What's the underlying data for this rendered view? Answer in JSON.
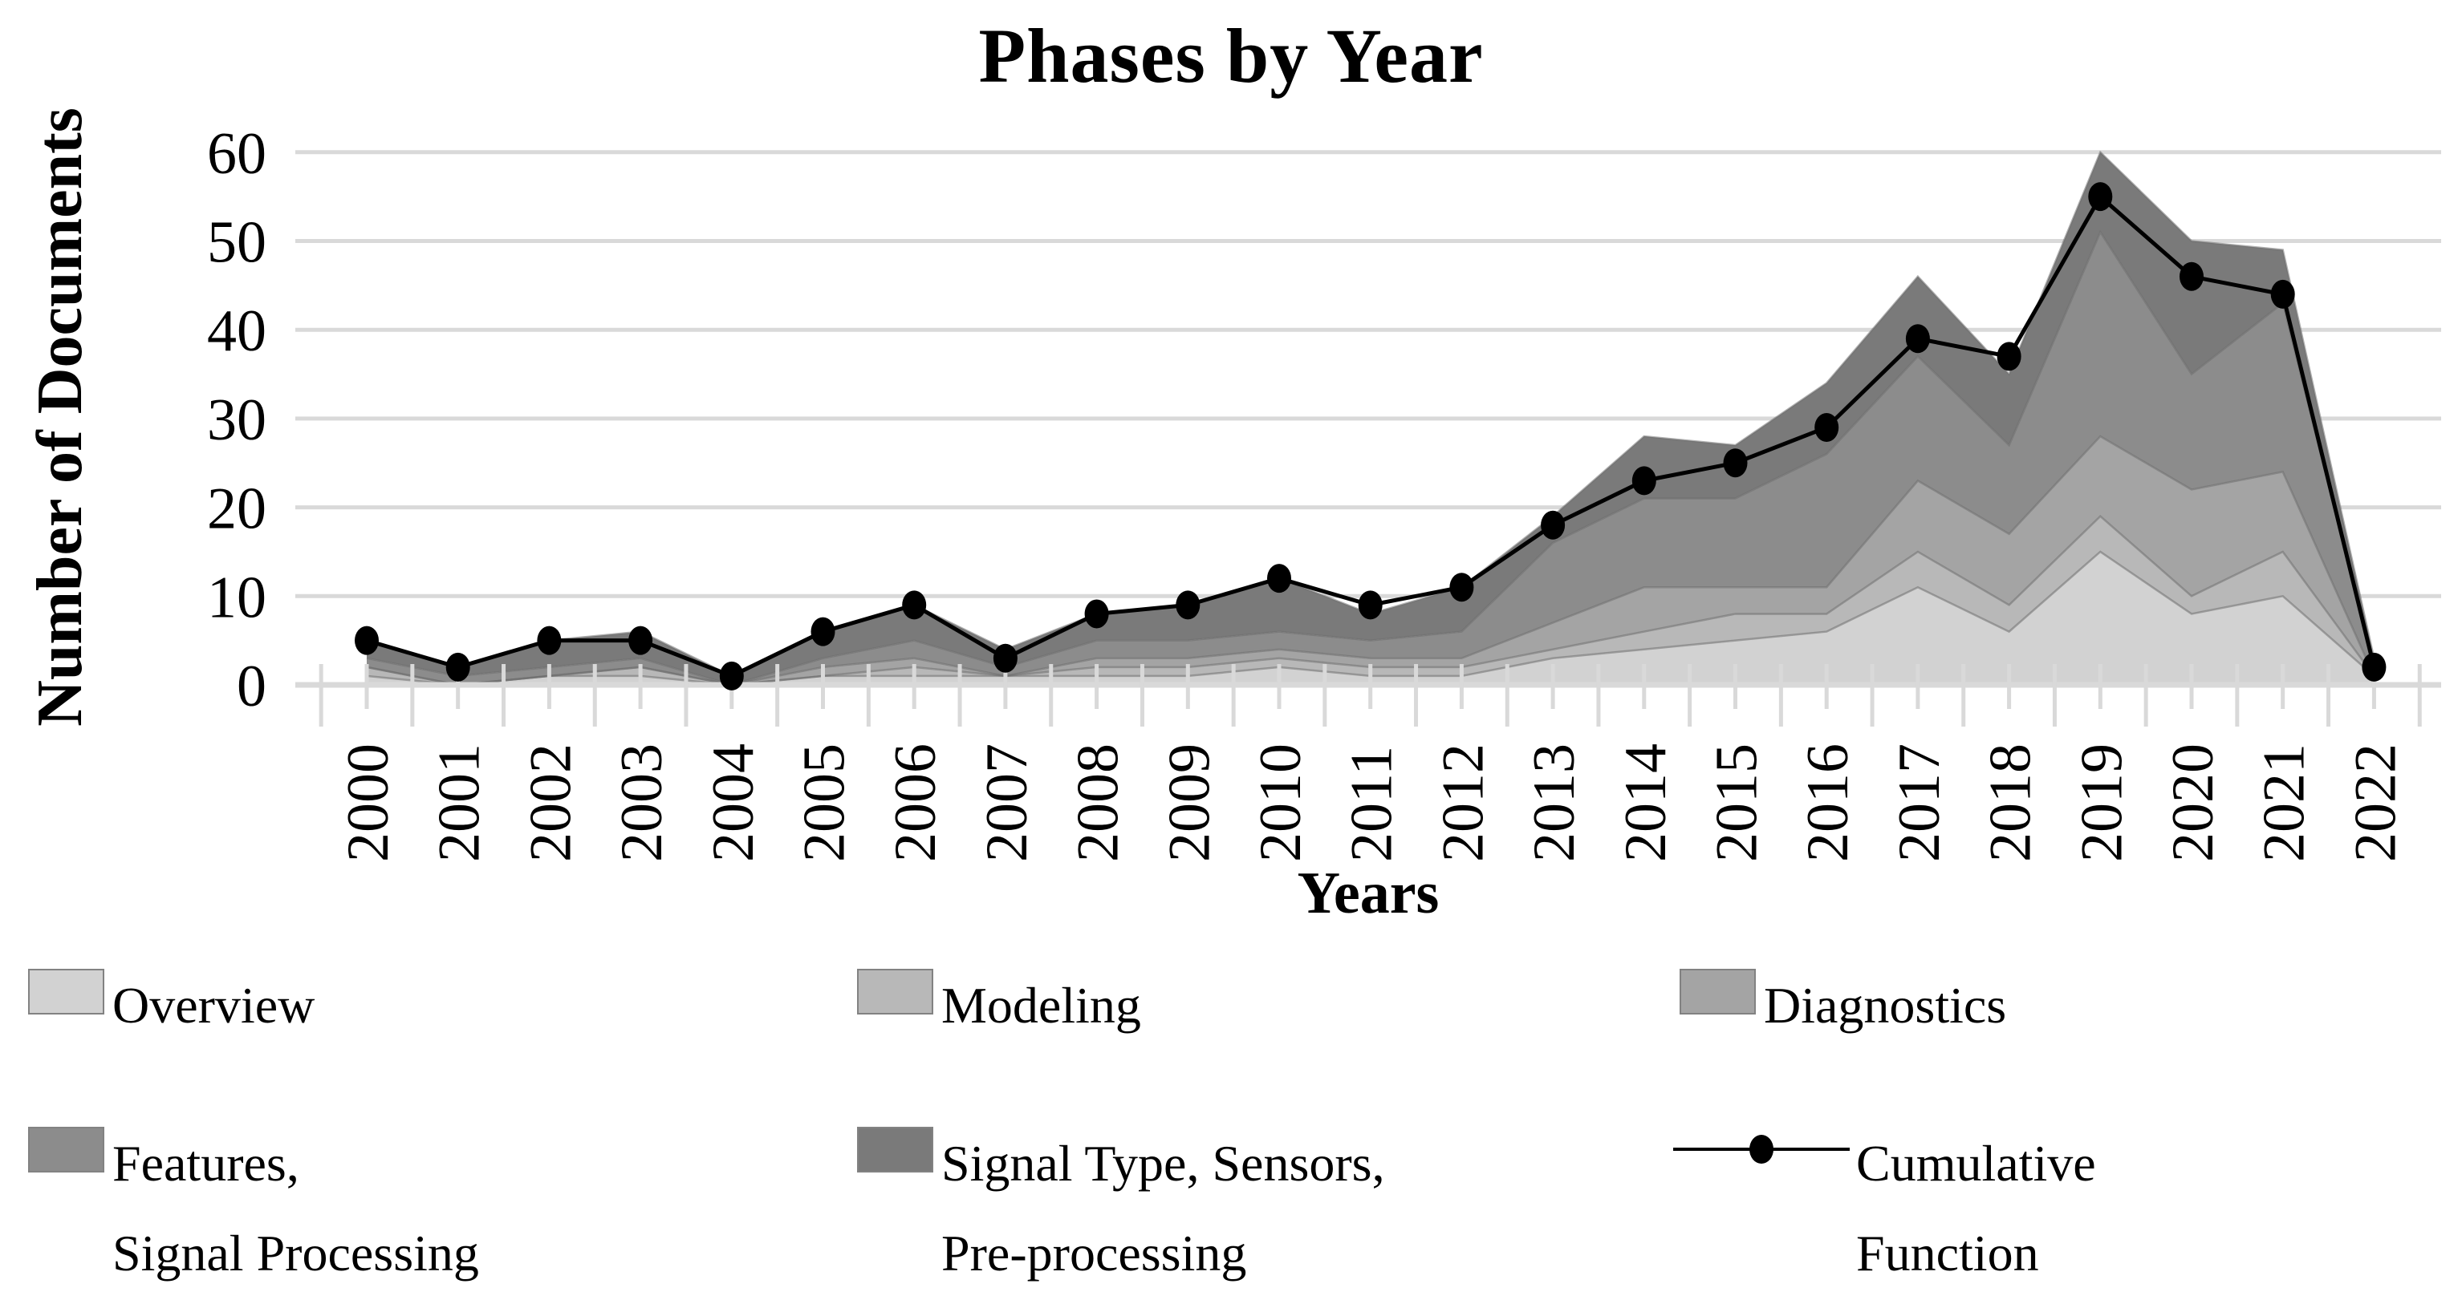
{
  "page": {
    "background": "#ffffff"
  },
  "chart": {
    "title": "Phases by Year"
  },
  "chart_data": {
    "type": "area",
    "stacked": true,
    "title": "Phases by Year",
    "xlabel": "Years",
    "ylabel": "Number of Documents",
    "ylim": [
      0,
      60
    ],
    "y_ticks": [
      0,
      10,
      20,
      30,
      40,
      50,
      60
    ],
    "grid": "horizontal",
    "legend_position": "bottom",
    "years": [
      "2000",
      "2001",
      "2002",
      "2003",
      "2004",
      "2005",
      "2006",
      "2007",
      "2008",
      "2009",
      "2010",
      "2011",
      "2012",
      "2013",
      "2014",
      "2015",
      "2016",
      "2017",
      "2018",
      "2019",
      "2020",
      "2021",
      "2022"
    ],
    "series": [
      {
        "name": "Overview",
        "color": "#d2d2d2",
        "values": [
          1,
          0,
          1,
          1,
          0,
          1,
          1,
          1,
          1,
          1,
          2,
          1,
          1,
          3,
          4,
          5,
          6,
          11,
          6,
          15,
          8,
          10,
          1
        ]
      },
      {
        "name": "Modeling",
        "color": "#b8b8b8",
        "values": [
          1,
          0,
          0,
          1,
          0,
          0,
          1,
          0,
          1,
          1,
          1,
          1,
          1,
          1,
          2,
          3,
          2,
          4,
          3,
          4,
          2,
          5,
          0
        ]
      },
      {
        "name": "Diagnostics",
        "color": "#a4a4a4",
        "values": [
          0,
          0,
          0,
          0,
          0,
          1,
          1,
          0,
          1,
          1,
          1,
          1,
          1,
          3,
          5,
          3,
          3,
          8,
          8,
          9,
          12,
          9,
          0
        ]
      },
      {
        "name": "Features, Signal Processing",
        "color": "#8c8c8c",
        "values": [
          1,
          1,
          1,
          1,
          0,
          1,
          2,
          1,
          2,
          2,
          2,
          2,
          3,
          9,
          10,
          10,
          15,
          14,
          10,
          23,
          13,
          19,
          1
        ]
      },
      {
        "name": "Signal Type, Sensors, Pre-processing",
        "color": "#7a7a7a",
        "values": [
          2,
          1,
          3,
          3,
          1,
          3,
          4,
          2,
          3,
          4,
          6,
          3,
          5,
          3,
          7,
          6,
          8,
          9,
          8,
          9,
          15,
          6,
          1
        ]
      }
    ],
    "line": {
      "name": "Cumulative Function",
      "color": "#000000",
      "marker": "filled-oval",
      "values": [
        5,
        2,
        5,
        5,
        1,
        6,
        9,
        3,
        8,
        9,
        12,
        9,
        11,
        18,
        23,
        25,
        29,
        39,
        37,
        55,
        46,
        44,
        2
      ]
    }
  },
  "legend": {
    "items": [
      {
        "line1": "Overview",
        "line2": ""
      },
      {
        "line1": "Modeling",
        "line2": ""
      },
      {
        "line1": "Diagnostics",
        "line2": ""
      },
      {
        "line1": "Features,",
        "line2": "Signal Processing"
      },
      {
        "line1": "Signal Type, Sensors,",
        "line2": "Pre-processing"
      },
      {
        "line1": "Cumulative",
        "line2": "Function"
      }
    ]
  }
}
